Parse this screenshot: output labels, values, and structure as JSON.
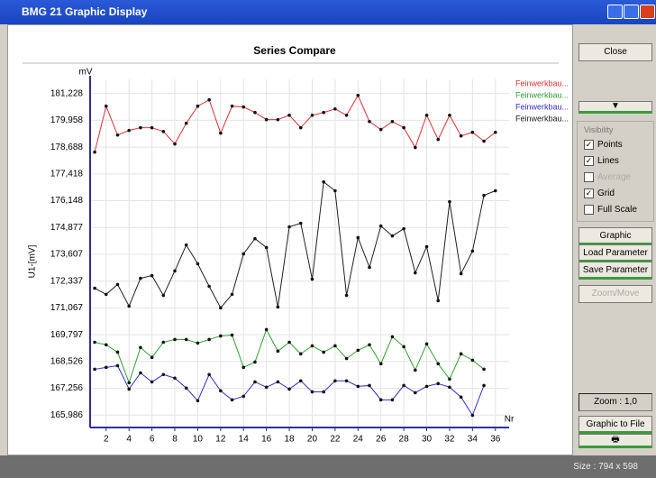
{
  "window": {
    "title": "BMG 21 Graphic Display",
    "status": "Size : 794 x 598"
  },
  "chart_data": {
    "type": "line",
    "title": "Series Compare",
    "y_unit": "mV",
    "y_label": "U1-[mV]",
    "x_label": "Nr",
    "x": [
      1,
      2,
      3,
      4,
      5,
      6,
      7,
      8,
      9,
      10,
      11,
      12,
      13,
      14,
      15,
      16,
      17,
      18,
      19,
      20,
      21,
      22,
      23,
      24,
      25,
      26,
      27,
      28,
      29,
      30,
      31,
      32,
      33,
      34,
      35,
      36
    ],
    "xlim": [
      0.6,
      37.2
    ],
    "xticks": [
      2,
      4,
      6,
      8,
      10,
      12,
      14,
      16,
      18,
      20,
      22,
      24,
      26,
      28,
      30,
      32,
      34,
      36
    ],
    "ylim": [
      165.4,
      181.9
    ],
    "yticks": [
      {
        "value": 165.986,
        "label": "165,986"
      },
      {
        "value": 167.256,
        "label": "167,256"
      },
      {
        "value": 168.526,
        "label": "168,526"
      },
      {
        "value": 169.797,
        "label": "169,797"
      },
      {
        "value": 171.067,
        "label": "171,067"
      },
      {
        "value": 172.337,
        "label": "172,337"
      },
      {
        "value": 173.607,
        "label": "173,607"
      },
      {
        "value": 174.877,
        "label": "174,877"
      },
      {
        "value": 176.148,
        "label": "176,148"
      },
      {
        "value": 177.418,
        "label": "177,418"
      },
      {
        "value": 178.688,
        "label": "178,688"
      },
      {
        "value": 179.958,
        "label": "179,958"
      },
      {
        "value": 181.228,
        "label": "181,228"
      }
    ],
    "grid": true,
    "points": true,
    "lines": true,
    "series": [
      {
        "name": "Feinwerkbau...",
        "color": "#e03030",
        "values": [
          178.45,
          180.63,
          179.26,
          179.48,
          179.61,
          179.61,
          179.43,
          178.84,
          179.82,
          180.63,
          180.93,
          179.35,
          180.63,
          180.59,
          180.33,
          179.99,
          179.99,
          180.2,
          179.61,
          180.2,
          180.33,
          180.5,
          180.2,
          181.14,
          179.9,
          179.52,
          179.9,
          179.61,
          178.67,
          180.2,
          179.05,
          180.2,
          179.22,
          179.39,
          178.97,
          179.39
        ]
      },
      {
        "name": "Feinwerkbau...",
        "color": "#30a030",
        "values": [
          169.44,
          169.32,
          168.97,
          167.52,
          169.19,
          168.72,
          169.44,
          169.57,
          169.57,
          169.4,
          169.57,
          169.74,
          169.78,
          168.25,
          168.5,
          170.04,
          169.02,
          169.44,
          168.89,
          169.27,
          168.97,
          169.27,
          168.67,
          169.06,
          169.32,
          168.42,
          169.7,
          169.23,
          168.12,
          169.36,
          168.42,
          167.69,
          168.89,
          168.59,
          168.16,
          null
        ]
      },
      {
        "name": "Feinwerkbau...",
        "color": "#3030d0",
        "values": [
          168.16,
          168.25,
          168.33,
          167.22,
          167.99,
          167.56,
          167.91,
          167.74,
          167.27,
          166.67,
          167.91,
          167.14,
          166.71,
          166.88,
          167.56,
          167.31,
          167.56,
          167.22,
          167.61,
          167.09,
          167.09,
          167.61,
          167.61,
          167.35,
          167.39,
          166.71,
          166.71,
          167.39,
          167.05,
          167.35,
          167.48,
          167.31,
          166.84,
          165.98,
          167.39,
          null
        ]
      },
      {
        "name": "Feinwerkbau...",
        "color": "#202020",
        "values": [
          172.0,
          171.71,
          172.18,
          171.15,
          172.47,
          172.6,
          171.66,
          172.82,
          174.05,
          173.16,
          172.09,
          171.07,
          171.71,
          173.63,
          174.35,
          173.93,
          171.11,
          174.91,
          175.08,
          172.43,
          177.04,
          176.62,
          171.66,
          174.4,
          172.99,
          174.95,
          174.48,
          174.82,
          172.73,
          173.97,
          171.41,
          176.1,
          172.69,
          173.76,
          176.4,
          176.62
        ]
      }
    ]
  },
  "sidebar": {
    "close": "Close",
    "group_label": "Visibility",
    "checkboxes": [
      {
        "label": "Points",
        "checked": true,
        "enabled": true
      },
      {
        "label": "Lines",
        "checked": true,
        "enabled": true
      },
      {
        "label": "Average",
        "checked": false,
        "enabled": false
      },
      {
        "label": "Grid",
        "checked": true,
        "enabled": true
      },
      {
        "label": "Full Scale",
        "checked": false,
        "enabled": true
      }
    ],
    "buttons": [
      "Graphic Parameter",
      "Load Parameter",
      "Save Parameter",
      "Zoom/Move"
    ],
    "zoom": "Zoom : 1,0",
    "to_file": "Graphic to File"
  }
}
